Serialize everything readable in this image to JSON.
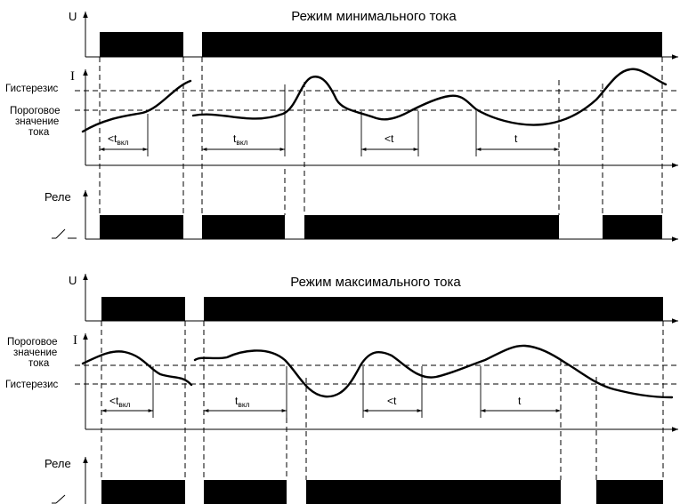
{
  "colors": {
    "line": "#000000",
    "background": "#ffffff"
  },
  "panels": [
    {
      "id": "min",
      "title": "Режим минимального тока",
      "u_label": "U",
      "i_label": "I",
      "relay_label": "Реле",
      "hysteresis_label": "Гистерезис",
      "threshold_label": [
        "Пороговое",
        "значение",
        "тока"
      ],
      "intervals": [
        {
          "prefix": "<t",
          "sub": "вкл"
        },
        {
          "prefix": "t",
          "sub": "вкл"
        },
        {
          "prefix": "<t",
          "sub": ""
        },
        {
          "prefix": "t",
          "sub": ""
        }
      ]
    },
    {
      "id": "max",
      "title": "Режим максимального тока",
      "u_label": "U",
      "i_label": "I",
      "relay_label": "Реле",
      "hysteresis_label": "Гистерезис",
      "threshold_label": [
        "Пороговое",
        "значение",
        "тока"
      ],
      "intervals": [
        {
          "prefix": "<t",
          "sub": "вкл"
        },
        {
          "prefix": "t",
          "sub": "вкл"
        },
        {
          "prefix": "<t",
          "sub": ""
        },
        {
          "prefix": "t",
          "sub": ""
        }
      ]
    }
  ]
}
